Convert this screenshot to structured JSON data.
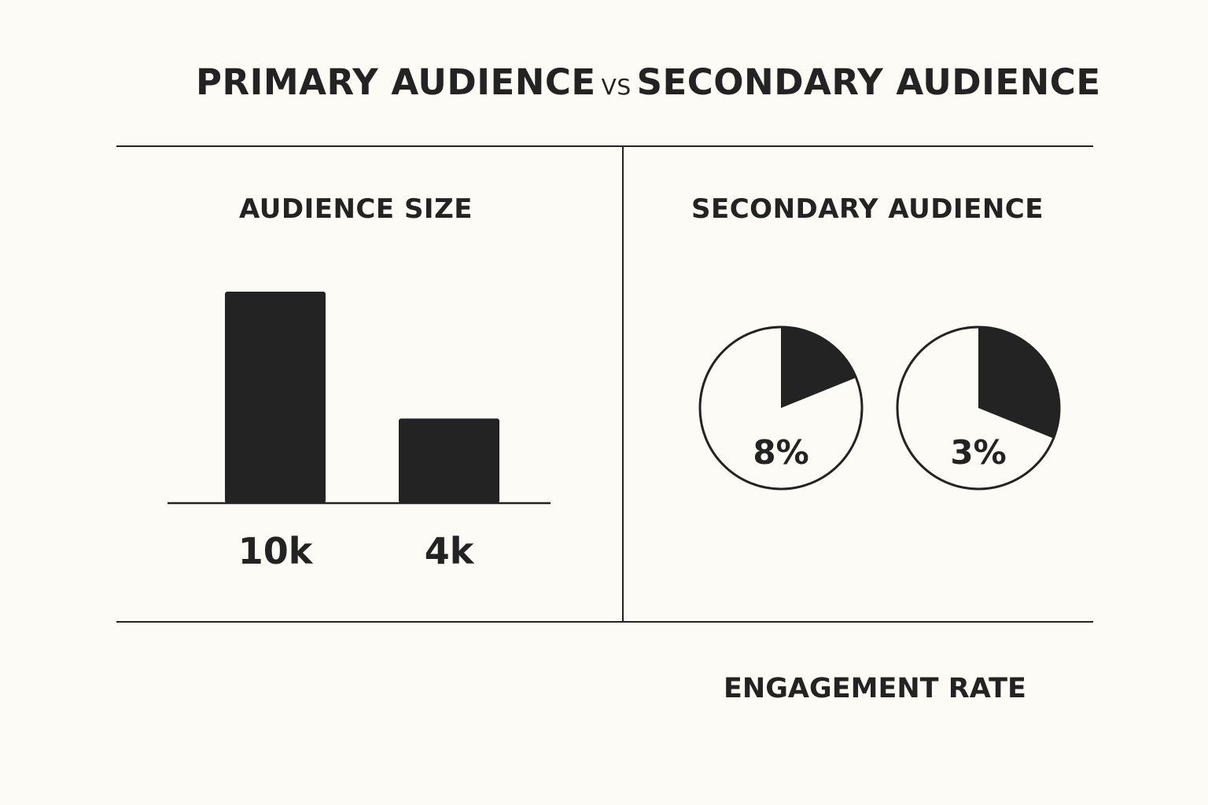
{
  "title": {
    "left": "PRIMARY AUDIENCE",
    "vs": "VS",
    "right": "SECONDARY AUDIENCE"
  },
  "panels": {
    "left_title": "AUDIENCE SIZE",
    "right_title": "SECONDARY AUDIENCE"
  },
  "footer_label": "ENGAGEMENT RATE",
  "colors": {
    "background": "#fcfbf6",
    "ink": "#232323"
  },
  "chart_data": [
    {
      "type": "bar",
      "title": "AUDIENCE SIZE",
      "categories": [
        "10k",
        "4k"
      ],
      "values": [
        10000,
        4000
      ],
      "ylim": [
        0,
        10000
      ],
      "grid": false
    },
    {
      "type": "pie",
      "title": "SECONDARY AUDIENCE",
      "xlabel": "ENGAGEMENT RATE",
      "pies": [
        {
          "label": "8%",
          "value": 8
        },
        {
          "label": "3%",
          "value": 3
        }
      ]
    }
  ]
}
